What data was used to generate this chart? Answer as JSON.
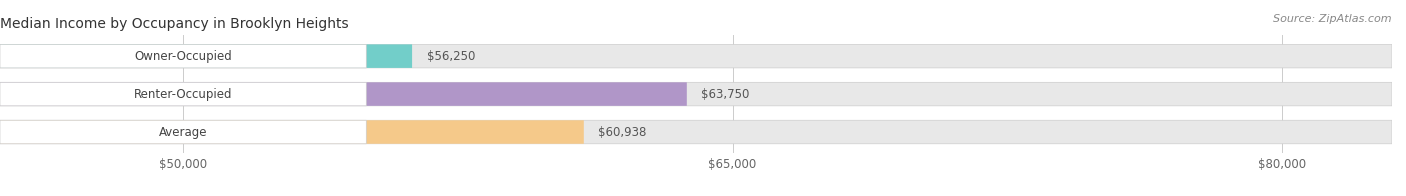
{
  "title": "Median Income by Occupancy in Brooklyn Heights",
  "source": "Source: ZipAtlas.com",
  "categories": [
    "Owner-Occupied",
    "Renter-Occupied",
    "Average"
  ],
  "values": [
    56250,
    63750,
    60938
  ],
  "value_labels": [
    "$56,250",
    "$63,750",
    "$60,938"
  ],
  "bar_colors": [
    "#72cec9",
    "#b096c8",
    "#f5c98a"
  ],
  "bar_bg_color": "#e8e8e8",
  "label_bg_color": "#ffffff",
  "xlim_left": 45000,
  "xlim_right": 83000,
  "xticks": [
    50000,
    65000,
    80000
  ],
  "xtick_labels": [
    "$50,000",
    "$65,000",
    "$80,000"
  ],
  "title_fontsize": 10,
  "source_fontsize": 8,
  "label_fontsize": 8.5,
  "tick_fontsize": 8.5,
  "bar_height": 0.62,
  "background_color": "#ffffff"
}
